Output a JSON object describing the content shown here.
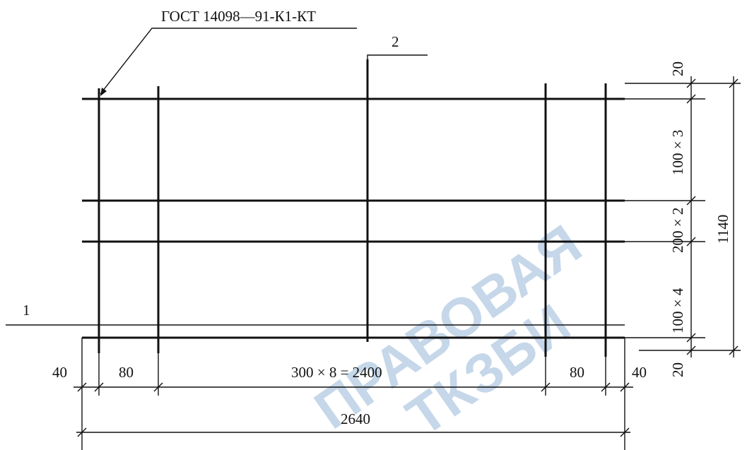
{
  "drawing": {
    "standard_label": "ГОСТ 14098—91-К1-КТ",
    "callout_1": "1",
    "callout_2": "2",
    "dims": {
      "left_edge": "40",
      "left_pitch": "80",
      "middle": "300 × 8 = 2400",
      "right_pitch": "80",
      "right_edge": "40",
      "total_width": "2640",
      "top_edge": "20",
      "upper": "100 × 3",
      "center": "200 × 2",
      "lower": "100 × 4",
      "bottom_edge": "20",
      "total_height": "1140"
    },
    "watermark": [
      "ПРАВОВАЯ",
      "ТКЗБИ"
    ]
  }
}
